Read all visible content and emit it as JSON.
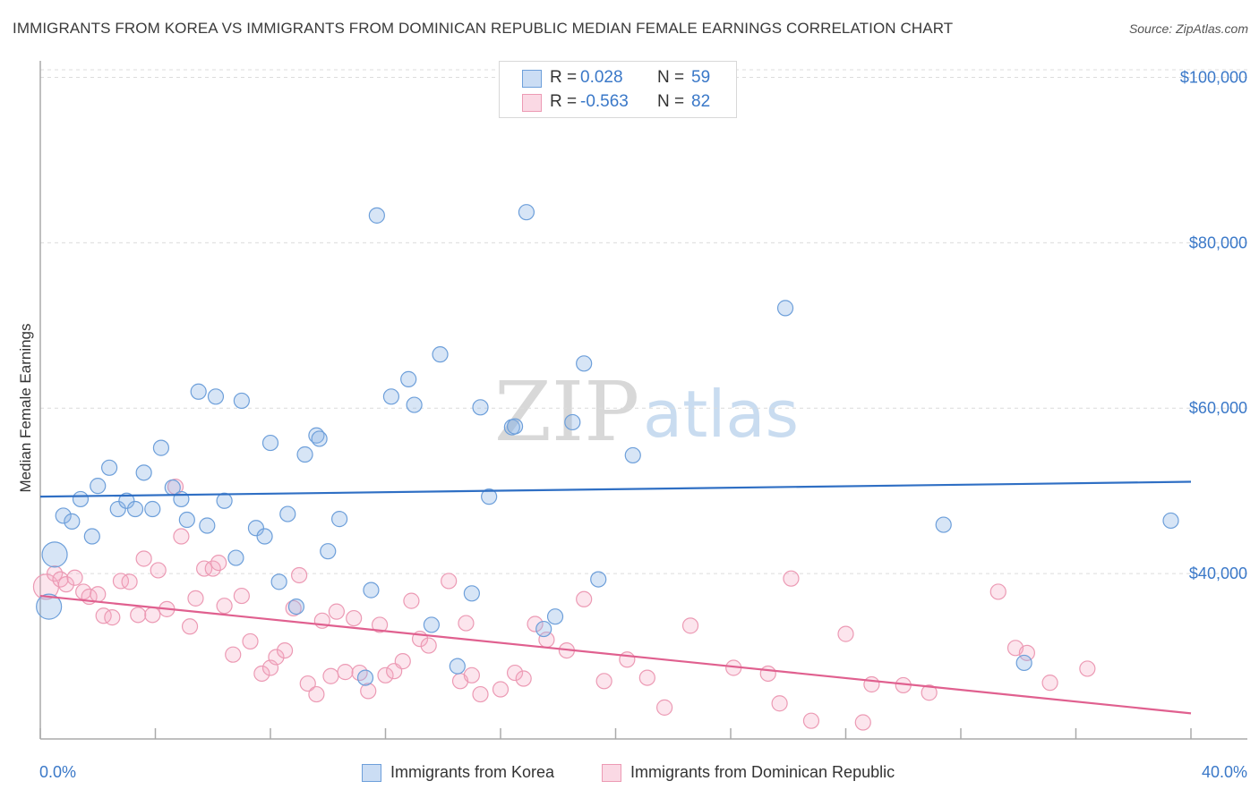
{
  "title": "IMMIGRANTS FROM KOREA VS IMMIGRANTS FROM DOMINICAN REPUBLIC MEDIAN FEMALE EARNINGS CORRELATION CHART",
  "source": "Source: ZipAtlas.com",
  "watermark": {
    "zip": "ZIP",
    "atlas": "atlas"
  },
  "legend": {
    "rows": [
      {
        "r_label": "R =",
        "r_value": "0.028",
        "n_label": "N =",
        "n_value": "59"
      },
      {
        "r_label": "R =",
        "r_value": "-0.563",
        "n_label": "N =",
        "n_value": "82"
      }
    ]
  },
  "bottom_legend": [
    "Immigrants from Korea",
    "Immigrants from Dominican Republic"
  ],
  "colors": {
    "korea": "#6d9fda",
    "dominican": "#ec9ab4",
    "korea_line": "#2f6fc4",
    "dominican_line": "#e0608f",
    "axis_text": "#3a78c8"
  },
  "chart_data": {
    "type": "scatter",
    "title": "IMMIGRANTS FROM KOREA VS IMMIGRANTS FROM DOMINICAN REPUBLIC MEDIAN FEMALE EARNINGS CORRELATION CHART",
    "xlabel": "",
    "ylabel": "Median Female Earnings",
    "xlim": [
      0,
      40
    ],
    "ylim": [
      20000,
      102000
    ],
    "x_tick_labels": [
      "0.0%",
      "40.0%"
    ],
    "y_ticks": [
      40000,
      60000,
      80000,
      100000
    ],
    "y_tick_labels": [
      "$40,000",
      "$60,000",
      "$80,000",
      "$100,000"
    ],
    "grid": true,
    "series": [
      {
        "name": "Immigrants from Korea",
        "trend": {
          "x": [
            0,
            40
          ],
          "y": [
            49300,
            51100
          ]
        },
        "points": [
          {
            "x": 0.3,
            "y": 36000,
            "big": true
          },
          {
            "x": 0.5,
            "y": 42300,
            "big": true
          },
          {
            "x": 0.8,
            "y": 47000
          },
          {
            "x": 1.1,
            "y": 46300
          },
          {
            "x": 1.4,
            "y": 49000
          },
          {
            "x": 1.8,
            "y": 44500
          },
          {
            "x": 2.0,
            "y": 50600
          },
          {
            "x": 2.4,
            "y": 52800
          },
          {
            "x": 2.7,
            "y": 47800
          },
          {
            "x": 3.0,
            "y": 48800
          },
          {
            "x": 3.3,
            "y": 47800
          },
          {
            "x": 3.6,
            "y": 52200
          },
          {
            "x": 3.9,
            "y": 47800
          },
          {
            "x": 4.2,
            "y": 55200
          },
          {
            "x": 4.6,
            "y": 50400
          },
          {
            "x": 4.9,
            "y": 49000
          },
          {
            "x": 5.1,
            "y": 46500
          },
          {
            "x": 5.5,
            "y": 62000
          },
          {
            "x": 5.8,
            "y": 45800
          },
          {
            "x": 6.1,
            "y": 61400
          },
          {
            "x": 6.4,
            "y": 48800
          },
          {
            "x": 6.8,
            "y": 41900
          },
          {
            "x": 7.0,
            "y": 60900
          },
          {
            "x": 7.5,
            "y": 45500
          },
          {
            "x": 7.8,
            "y": 44500
          },
          {
            "x": 8.0,
            "y": 55800
          },
          {
            "x": 8.3,
            "y": 39000
          },
          {
            "x": 8.6,
            "y": 47200
          },
          {
            "x": 8.9,
            "y": 36000
          },
          {
            "x": 9.2,
            "y": 54400
          },
          {
            "x": 9.6,
            "y": 56700
          },
          {
            "x": 9.7,
            "y": 56300
          },
          {
            "x": 10.0,
            "y": 42700
          },
          {
            "x": 10.4,
            "y": 46600
          },
          {
            "x": 11.3,
            "y": 27400
          },
          {
            "x": 11.5,
            "y": 38000
          },
          {
            "x": 11.7,
            "y": 83300
          },
          {
            "x": 12.2,
            "y": 61400
          },
          {
            "x": 12.8,
            "y": 63500
          },
          {
            "x": 13.0,
            "y": 60400
          },
          {
            "x": 13.6,
            "y": 33800
          },
          {
            "x": 13.9,
            "y": 66500
          },
          {
            "x": 14.5,
            "y": 28800
          },
          {
            "x": 15.0,
            "y": 37600
          },
          {
            "x": 15.3,
            "y": 60100
          },
          {
            "x": 15.6,
            "y": 49300
          },
          {
            "x": 16.4,
            "y": 57700
          },
          {
            "x": 16.5,
            "y": 57800
          },
          {
            "x": 16.9,
            "y": 83700
          },
          {
            "x": 17.5,
            "y": 33300
          },
          {
            "x": 17.9,
            "y": 34800
          },
          {
            "x": 18.5,
            "y": 58300
          },
          {
            "x": 18.9,
            "y": 65400
          },
          {
            "x": 19.4,
            "y": 39300
          },
          {
            "x": 20.6,
            "y": 54300
          },
          {
            "x": 25.9,
            "y": 72100
          },
          {
            "x": 31.4,
            "y": 45900
          },
          {
            "x": 34.2,
            "y": 29200
          },
          {
            "x": 39.3,
            "y": 46400
          }
        ]
      },
      {
        "name": "Immigrants from Dominican Republic",
        "trend": {
          "x": [
            0,
            40
          ],
          "y": [
            37300,
            23100
          ]
        },
        "points": [
          {
            "x": 0.2,
            "y": 38400,
            "big": true
          },
          {
            "x": 0.5,
            "y": 40000
          },
          {
            "x": 0.7,
            "y": 39300
          },
          {
            "x": 0.9,
            "y": 38700
          },
          {
            "x": 1.2,
            "y": 39500
          },
          {
            "x": 1.5,
            "y": 37800
          },
          {
            "x": 1.7,
            "y": 37200
          },
          {
            "x": 2.0,
            "y": 37500
          },
          {
            "x": 2.2,
            "y": 34900
          },
          {
            "x": 2.5,
            "y": 34700
          },
          {
            "x": 2.8,
            "y": 39100
          },
          {
            "x": 3.1,
            "y": 39000
          },
          {
            "x": 3.4,
            "y": 35000
          },
          {
            "x": 3.6,
            "y": 41800
          },
          {
            "x": 3.9,
            "y": 35000
          },
          {
            "x": 4.1,
            "y": 40400
          },
          {
            "x": 4.4,
            "y": 35700
          },
          {
            "x": 4.7,
            "y": 50500
          },
          {
            "x": 4.9,
            "y": 44500
          },
          {
            "x": 5.2,
            "y": 33600
          },
          {
            "x": 5.4,
            "y": 37000
          },
          {
            "x": 5.7,
            "y": 40600
          },
          {
            "x": 6.0,
            "y": 40600
          },
          {
            "x": 6.2,
            "y": 41300
          },
          {
            "x": 6.4,
            "y": 36100
          },
          {
            "x": 6.7,
            "y": 30200
          },
          {
            "x": 7.0,
            "y": 37300
          },
          {
            "x": 7.3,
            "y": 31800
          },
          {
            "x": 7.7,
            "y": 27900
          },
          {
            "x": 8.0,
            "y": 28600
          },
          {
            "x": 8.2,
            "y": 29900
          },
          {
            "x": 8.5,
            "y": 30700
          },
          {
            "x": 8.8,
            "y": 35800
          },
          {
            "x": 9.0,
            "y": 39800
          },
          {
            "x": 9.3,
            "y": 26700
          },
          {
            "x": 9.6,
            "y": 25400
          },
          {
            "x": 9.8,
            "y": 34300
          },
          {
            "x": 10.1,
            "y": 27600
          },
          {
            "x": 10.3,
            "y": 35400
          },
          {
            "x": 10.6,
            "y": 28100
          },
          {
            "x": 10.9,
            "y": 34600
          },
          {
            "x": 11.1,
            "y": 28000
          },
          {
            "x": 11.4,
            "y": 25800
          },
          {
            "x": 11.8,
            "y": 33800
          },
          {
            "x": 12.0,
            "y": 27700
          },
          {
            "x": 12.3,
            "y": 28200
          },
          {
            "x": 12.6,
            "y": 29400
          },
          {
            "x": 12.9,
            "y": 36700
          },
          {
            "x": 13.2,
            "y": 32100
          },
          {
            "x": 13.5,
            "y": 31300
          },
          {
            "x": 14.2,
            "y": 39100
          },
          {
            "x": 14.6,
            "y": 27000
          },
          {
            "x": 14.8,
            "y": 34000
          },
          {
            "x": 15.0,
            "y": 27700
          },
          {
            "x": 15.3,
            "y": 25400
          },
          {
            "x": 16.0,
            "y": 26000
          },
          {
            "x": 16.5,
            "y": 28000
          },
          {
            "x": 16.8,
            "y": 27300
          },
          {
            "x": 17.2,
            "y": 33900
          },
          {
            "x": 17.6,
            "y": 32000
          },
          {
            "x": 18.3,
            "y": 30700
          },
          {
            "x": 18.9,
            "y": 36900
          },
          {
            "x": 19.6,
            "y": 27000
          },
          {
            "x": 20.4,
            "y": 29600
          },
          {
            "x": 21.1,
            "y": 27400
          },
          {
            "x": 21.7,
            "y": 23800
          },
          {
            "x": 22.6,
            "y": 33700
          },
          {
            "x": 24.1,
            "y": 28600
          },
          {
            "x": 25.3,
            "y": 27900
          },
          {
            "x": 25.7,
            "y": 24300
          },
          {
            "x": 26.1,
            "y": 39400
          },
          {
            "x": 26.8,
            "y": 22200
          },
          {
            "x": 28.0,
            "y": 32700
          },
          {
            "x": 28.6,
            "y": 22000
          },
          {
            "x": 28.9,
            "y": 26600
          },
          {
            "x": 30.0,
            "y": 26500
          },
          {
            "x": 30.9,
            "y": 25600
          },
          {
            "x": 33.3,
            "y": 37800
          },
          {
            "x": 33.9,
            "y": 31000
          },
          {
            "x": 34.3,
            "y": 30400
          },
          {
            "x": 35.1,
            "y": 26800
          },
          {
            "x": 36.4,
            "y": 28500
          }
        ]
      }
    ]
  }
}
